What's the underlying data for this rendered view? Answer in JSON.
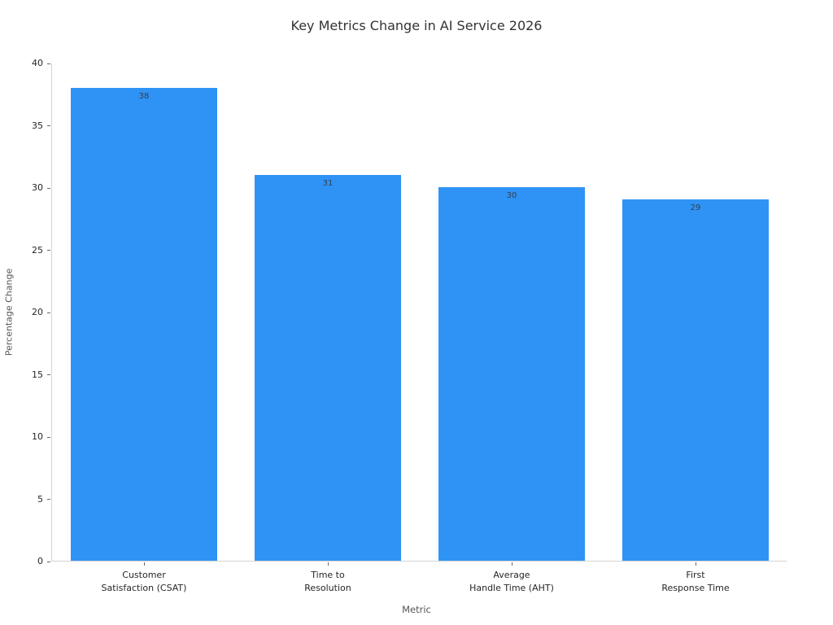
{
  "chart_data": {
    "type": "bar",
    "title": "Key Metrics Change in AI Service 2026",
    "xlabel": "Metric",
    "ylabel": "Percentage Change",
    "categories": [
      "Customer\nSatisfaction (CSAT)",
      "Time to\nResolution",
      "Average\nHandle Time (AHT)",
      "First\nResponse Time"
    ],
    "values": [
      38,
      31,
      30,
      29
    ],
    "value_labels": [
      "38",
      "31",
      "30",
      "29"
    ],
    "ylim": [
      0,
      40
    ],
    "yticks": [
      0,
      5,
      10,
      15,
      20,
      25,
      30,
      35,
      40
    ],
    "grid": false,
    "legend": null,
    "bar_color": "#2E93F5",
    "spine_color": "#d4d4d4",
    "tick_color": "#666666",
    "tick_label_color": "#262626",
    "title_color": "#333333",
    "axis_label_color": "#555555",
    "value_label_color": "#31404f"
  }
}
